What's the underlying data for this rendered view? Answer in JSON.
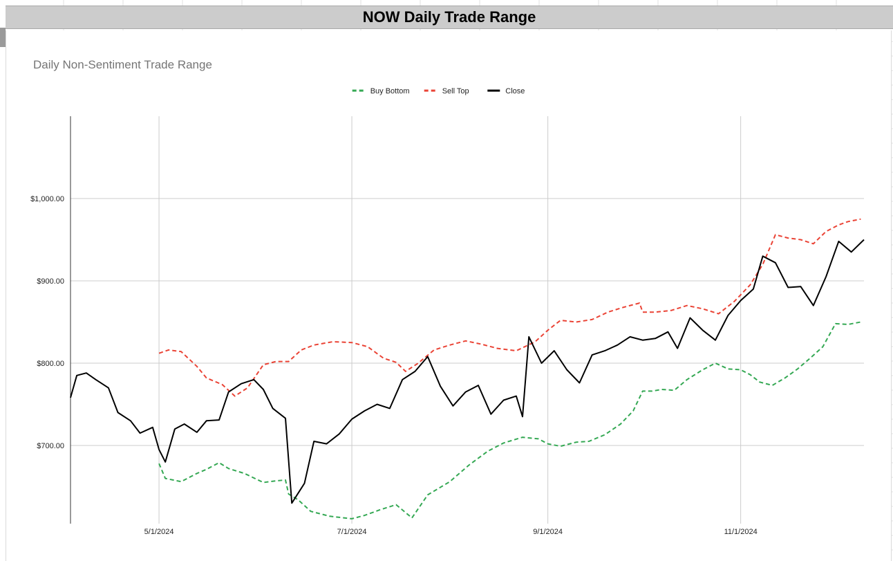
{
  "sheet": {
    "banner_title": "NOW Daily Trade Range"
  },
  "chart_data": {
    "type": "line",
    "title": "Daily Non-Sentiment Trade Range",
    "xlabel": "",
    "ylabel": "",
    "legend_position": "top",
    "grid": true,
    "x_ticks": [
      "5/1/2024",
      "7/1/2024",
      "9/1/2024",
      "11/1/2024"
    ],
    "y_ticks": [
      "$700.00",
      "$800.00",
      "$900.00",
      "$1,000.00"
    ],
    "ylim": [
      605,
      1100
    ],
    "xlim": [
      "2024-04-03",
      "2024-12-10"
    ],
    "series": [
      {
        "name": "Buy Bottom",
        "color": "#34a853",
        "dash": "dashed",
        "points": [
          [
            "2024-05-01",
            678
          ],
          [
            "2024-05-03",
            660
          ],
          [
            "2024-05-08",
            656
          ],
          [
            "2024-05-13",
            666
          ],
          [
            "2024-05-16",
            671
          ],
          [
            "2024-05-20",
            679
          ],
          [
            "2024-05-23",
            672
          ],
          [
            "2024-05-28",
            666
          ],
          [
            "2024-06-03",
            655
          ],
          [
            "2024-06-07",
            657
          ],
          [
            "2024-06-10",
            658
          ],
          [
            "2024-06-11",
            641
          ],
          [
            "2024-06-14",
            634
          ],
          [
            "2024-06-18",
            620
          ],
          [
            "2024-06-24",
            614
          ],
          [
            "2024-07-01",
            611
          ],
          [
            "2024-07-05",
            615
          ],
          [
            "2024-07-10",
            622
          ],
          [
            "2024-07-15",
            628
          ],
          [
            "2024-07-20",
            612
          ],
          [
            "2024-07-25",
            640
          ],
          [
            "2024-08-01",
            656
          ],
          [
            "2024-08-07",
            676
          ],
          [
            "2024-08-13",
            693
          ],
          [
            "2024-08-18",
            703
          ],
          [
            "2024-08-24",
            710
          ],
          [
            "2024-08-29",
            708
          ],
          [
            "2024-09-01",
            702
          ],
          [
            "2024-09-05",
            699
          ],
          [
            "2024-09-10",
            704
          ],
          [
            "2024-09-14",
            705
          ],
          [
            "2024-09-19",
            713
          ],
          [
            "2024-09-24",
            726
          ],
          [
            "2024-09-28",
            742
          ],
          [
            "2024-10-01",
            766
          ],
          [
            "2024-10-04",
            766
          ],
          [
            "2024-10-07",
            768
          ],
          [
            "2024-10-11",
            767
          ],
          [
            "2024-10-15",
            780
          ],
          [
            "2024-10-20",
            792
          ],
          [
            "2024-10-24",
            800
          ],
          [
            "2024-10-28",
            793
          ],
          [
            "2024-11-01",
            792
          ],
          [
            "2024-11-04",
            786
          ],
          [
            "2024-11-07",
            777
          ],
          [
            "2024-11-11",
            773
          ],
          [
            "2024-11-15",
            782
          ],
          [
            "2024-11-19",
            793
          ],
          [
            "2024-11-23",
            806
          ],
          [
            "2024-11-27",
            820
          ],
          [
            "2024-12-01",
            848
          ],
          [
            "2024-12-05",
            847
          ],
          [
            "2024-12-09",
            850
          ]
        ]
      },
      {
        "name": "Sell Top",
        "color": "#ea4335",
        "dash": "dashed",
        "points": [
          [
            "2024-05-01",
            812
          ],
          [
            "2024-05-04",
            816
          ],
          [
            "2024-05-08",
            814
          ],
          [
            "2024-05-13",
            796
          ],
          [
            "2024-05-16",
            782
          ],
          [
            "2024-05-21",
            774
          ],
          [
            "2024-05-25",
            760
          ],
          [
            "2024-05-29",
            770
          ],
          [
            "2024-06-03",
            798
          ],
          [
            "2024-06-07",
            802
          ],
          [
            "2024-06-11",
            802
          ],
          [
            "2024-06-15",
            816
          ],
          [
            "2024-06-19",
            822
          ],
          [
            "2024-06-25",
            826
          ],
          [
            "2024-07-01",
            825
          ],
          [
            "2024-07-06",
            820
          ],
          [
            "2024-07-11",
            806
          ],
          [
            "2024-07-15",
            801
          ],
          [
            "2024-07-18",
            790
          ],
          [
            "2024-07-22",
            800
          ],
          [
            "2024-07-27",
            816
          ],
          [
            "2024-08-01",
            822
          ],
          [
            "2024-08-06",
            827
          ],
          [
            "2024-08-11",
            823
          ],
          [
            "2024-08-16",
            818
          ],
          [
            "2024-08-22",
            815
          ],
          [
            "2024-08-28",
            826
          ],
          [
            "2024-09-01",
            840
          ],
          [
            "2024-09-05",
            852
          ],
          [
            "2024-09-10",
            850
          ],
          [
            "2024-09-15",
            853
          ],
          [
            "2024-09-20",
            862
          ],
          [
            "2024-09-25",
            868
          ],
          [
            "2024-09-30",
            873
          ],
          [
            "2024-10-01",
            862
          ],
          [
            "2024-10-05",
            862
          ],
          [
            "2024-10-10",
            864
          ],
          [
            "2024-10-15",
            870
          ],
          [
            "2024-10-20",
            866
          ],
          [
            "2024-10-25",
            860
          ],
          [
            "2024-10-30",
            875
          ],
          [
            "2024-11-04",
            895
          ],
          [
            "2024-11-08",
            920
          ],
          [
            "2024-11-12",
            956
          ],
          [
            "2024-11-16",
            952
          ],
          [
            "2024-11-20",
            950
          ],
          [
            "2024-11-24",
            945
          ],
          [
            "2024-11-28",
            960
          ],
          [
            "2024-12-02",
            968
          ],
          [
            "2024-12-05",
            972
          ],
          [
            "2024-12-09",
            975
          ]
        ]
      },
      {
        "name": "Close",
        "color": "#000000",
        "dash": "solid",
        "points": [
          [
            "2024-04-03",
            758
          ],
          [
            "2024-04-05",
            785
          ],
          [
            "2024-04-08",
            788
          ],
          [
            "2024-04-11",
            780
          ],
          [
            "2024-04-15",
            770
          ],
          [
            "2024-04-18",
            740
          ],
          [
            "2024-04-22",
            730
          ],
          [
            "2024-04-25",
            715
          ],
          [
            "2024-04-29",
            722
          ],
          [
            "2024-05-01",
            695
          ],
          [
            "2024-05-03",
            680
          ],
          [
            "2024-05-06",
            720
          ],
          [
            "2024-05-09",
            726
          ],
          [
            "2024-05-13",
            716
          ],
          [
            "2024-05-16",
            730
          ],
          [
            "2024-05-20",
            731
          ],
          [
            "2024-05-23",
            765
          ],
          [
            "2024-05-27",
            775
          ],
          [
            "2024-05-31",
            780
          ],
          [
            "2024-06-03",
            768
          ],
          [
            "2024-06-06",
            745
          ],
          [
            "2024-06-10",
            733
          ],
          [
            "2024-06-12",
            630
          ],
          [
            "2024-06-16",
            654
          ],
          [
            "2024-06-19",
            705
          ],
          [
            "2024-06-23",
            702
          ],
          [
            "2024-06-27",
            714
          ],
          [
            "2024-07-01",
            732
          ],
          [
            "2024-07-05",
            742
          ],
          [
            "2024-07-09",
            750
          ],
          [
            "2024-07-13",
            745
          ],
          [
            "2024-07-17",
            780
          ],
          [
            "2024-07-21",
            790
          ],
          [
            "2024-07-25",
            808
          ],
          [
            "2024-07-29",
            772
          ],
          [
            "2024-08-02",
            748
          ],
          [
            "2024-08-06",
            765
          ],
          [
            "2024-08-10",
            773
          ],
          [
            "2024-08-14",
            738
          ],
          [
            "2024-08-18",
            755
          ],
          [
            "2024-08-22",
            760
          ],
          [
            "2024-08-24",
            735
          ],
          [
            "2024-08-26",
            832
          ],
          [
            "2024-08-30",
            800
          ],
          [
            "2024-09-03",
            815
          ],
          [
            "2024-09-07",
            792
          ],
          [
            "2024-09-11",
            776
          ],
          [
            "2024-09-15",
            810
          ],
          [
            "2024-09-19",
            815
          ],
          [
            "2024-09-23",
            822
          ],
          [
            "2024-09-27",
            832
          ],
          [
            "2024-10-01",
            828
          ],
          [
            "2024-10-05",
            830
          ],
          [
            "2024-10-09",
            838
          ],
          [
            "2024-10-12",
            818
          ],
          [
            "2024-10-16",
            855
          ],
          [
            "2024-10-20",
            840
          ],
          [
            "2024-10-24",
            828
          ],
          [
            "2024-10-28",
            858
          ],
          [
            "2024-11-01",
            876
          ],
          [
            "2024-11-05",
            890
          ],
          [
            "2024-11-08",
            930
          ],
          [
            "2024-11-12",
            922
          ],
          [
            "2024-11-16",
            892
          ],
          [
            "2024-11-20",
            893
          ],
          [
            "2024-11-24",
            870
          ],
          [
            "2024-11-28",
            905
          ],
          [
            "2024-12-02",
            948
          ],
          [
            "2024-12-06",
            935
          ],
          [
            "2024-12-10",
            950
          ]
        ]
      }
    ]
  }
}
